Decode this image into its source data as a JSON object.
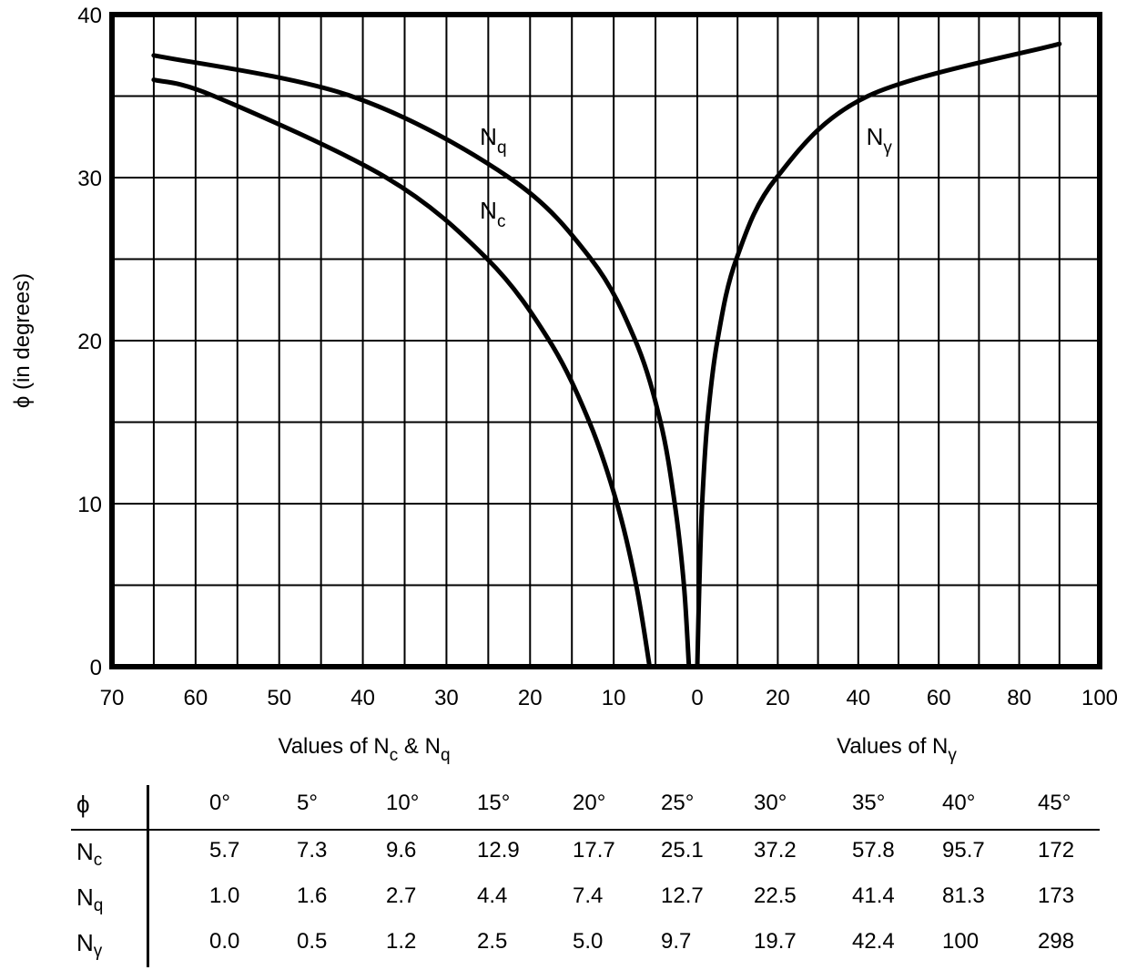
{
  "chart_data": {
    "type": "line",
    "ylabel": "ϕ (in degrees)",
    "ylim": [
      0,
      40
    ],
    "yticks": [
      "0",
      "10",
      "20",
      "30",
      "40"
    ],
    "left_panel": {
      "xlabel_parts": [
        "Values of N",
        "c",
        " & N",
        "q"
      ],
      "xlim": [
        70,
        0
      ],
      "xticks": [
        "70",
        "60",
        "50",
        "40",
        "30",
        "20",
        "10"
      ],
      "series": [
        {
          "name": "N",
          "sub": "q",
          "label_at": [
            26,
            32
          ],
          "x": [
            1.0,
            1.6,
            2.7,
            4.4,
            7.4,
            12.7,
            22.5,
            41.4,
            65
          ],
          "y": [
            0,
            5,
            10,
            15,
            20,
            25,
            30,
            35,
            37.5
          ]
        },
        {
          "name": "N",
          "sub": "c",
          "label_at": [
            26,
            27.5
          ],
          "x": [
            5.7,
            7.3,
            9.6,
            12.9,
            17.7,
            25.1,
            37.2,
            57.8,
            65
          ],
          "y": [
            0,
            5,
            10,
            15,
            20,
            25,
            30,
            35,
            36
          ]
        }
      ]
    },
    "right_panel": {
      "xlabel_parts": [
        "Values of N",
        "γ"
      ],
      "xlim": [
        0,
        100
      ],
      "xticks": [
        "0",
        "20",
        "40",
        "60",
        "80",
        "100"
      ],
      "series": [
        {
          "name": "N",
          "sub": "γ",
          "label_at": [
            42,
            32
          ],
          "x": [
            0.0,
            0.5,
            1.2,
            2.5,
            5.0,
            9.7,
            19.7,
            42.4,
            90
          ],
          "y": [
            0,
            5,
            10,
            15,
            20,
            25,
            30,
            35,
            38.2
          ]
        }
      ]
    },
    "grid": true
  },
  "table": {
    "header_label": "ϕ",
    "columns": [
      "0°",
      "5°",
      "10°",
      "15°",
      "20°",
      "25°",
      "30°",
      "35°",
      "40°",
      "45°"
    ],
    "rows": [
      {
        "label": "N",
        "sub": "c",
        "values": [
          "5.7",
          "7.3",
          "9.6",
          "12.9",
          "17.7",
          "25.1",
          "37.2",
          "57.8",
          "95.7",
          "172"
        ]
      },
      {
        "label": "N",
        "sub": "q",
        "values": [
          "1.0",
          "1.6",
          "2.7",
          "4.4",
          "7.4",
          "12.7",
          "22.5",
          "41.4",
          "81.3",
          "173"
        ]
      },
      {
        "label": "N",
        "sub": "γ",
        "values": [
          "0.0",
          "0.5",
          "1.2",
          "2.5",
          "5.0",
          "9.7",
          "19.7",
          "42.4",
          "100",
          "298"
        ]
      }
    ]
  }
}
